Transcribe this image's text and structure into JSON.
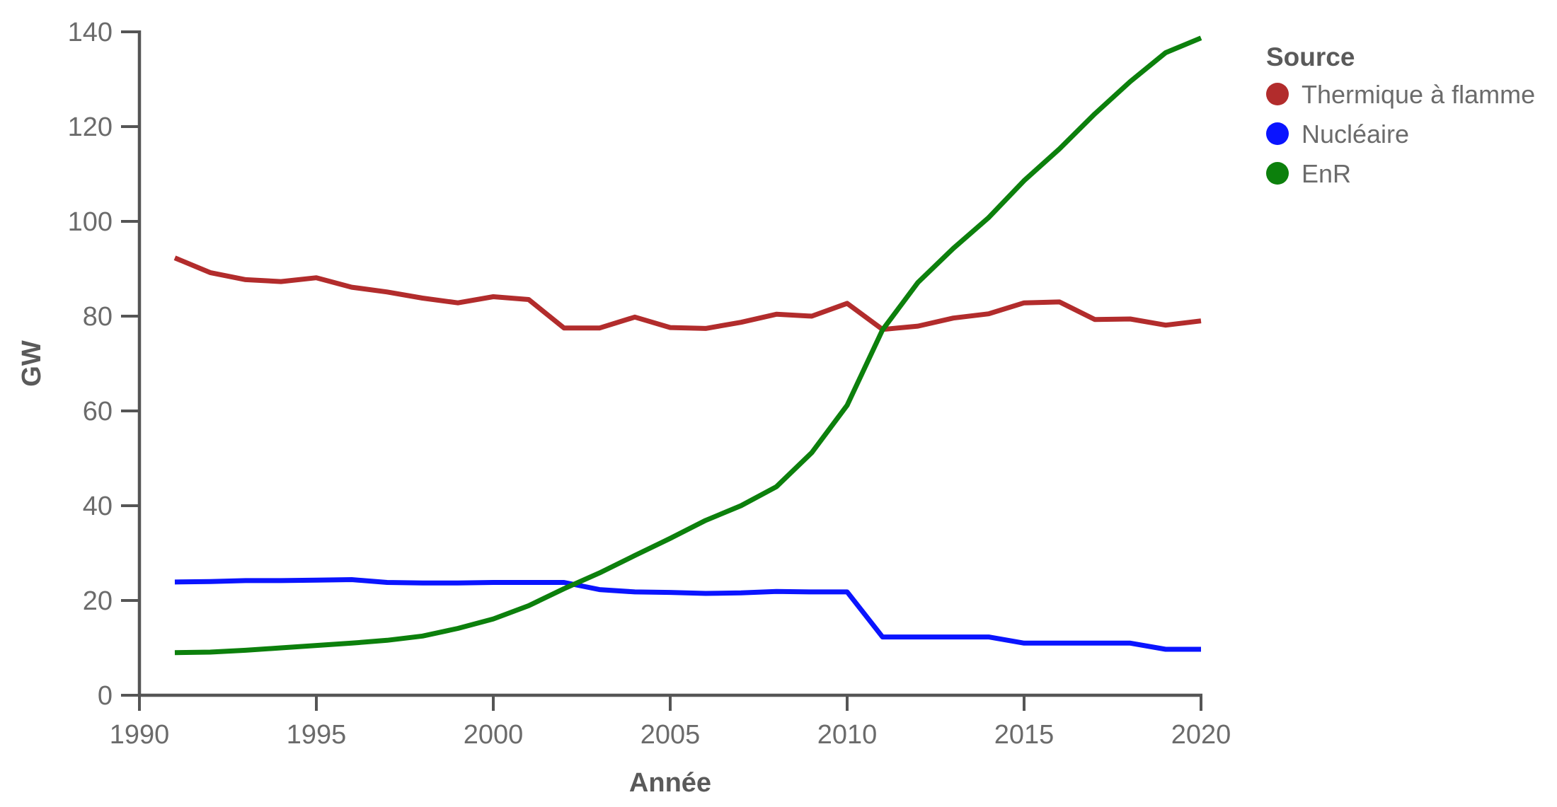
{
  "chart_data": {
    "type": "line",
    "xlabel": "Année",
    "ylabel": "GW",
    "xlim": [
      1990,
      2020
    ],
    "ylim": [
      0,
      140
    ],
    "xticks": [
      1990,
      1995,
      2000,
      2005,
      2010,
      2015,
      2020
    ],
    "yticks": [
      0,
      20,
      40,
      60,
      80,
      100,
      120,
      140
    ],
    "grid": false,
    "legend": {
      "title": "Source",
      "placement": "top-right"
    },
    "x": [
      1991,
      1992,
      1993,
      1994,
      1995,
      1996,
      1997,
      1998,
      1999,
      2000,
      2001,
      2002,
      2003,
      2004,
      2005,
      2006,
      2007,
      2008,
      2009,
      2010,
      2011,
      2012,
      2013,
      2014,
      2015,
      2016,
      2017,
      2018,
      2019,
      2020
    ],
    "series": [
      {
        "name": "Thermique à flamme",
        "color": "#b22c2c",
        "values": [
          92.3,
          89.2,
          87.7,
          87.3,
          88.1,
          86.1,
          85.1,
          83.8,
          82.8,
          84.1,
          83.5,
          77.5,
          77.5,
          79.8,
          77.6,
          77.4,
          78.7,
          80.4,
          80.0,
          82.7,
          77.2,
          77.9,
          79.6,
          80.5,
          82.8,
          83.0,
          79.3,
          79.4,
          78.1,
          79.0
        ]
      },
      {
        "name": "Nucléaire",
        "color": "#0a14ff",
        "values": [
          23.9,
          24.0,
          24.2,
          24.2,
          24.3,
          24.4,
          23.8,
          23.7,
          23.7,
          23.8,
          23.8,
          23.8,
          22.3,
          21.8,
          21.7,
          21.5,
          21.6,
          21.9,
          21.8,
          21.8,
          12.3,
          12.3,
          12.3,
          12.3,
          11.0,
          11.0,
          11.0,
          11.0,
          9.7,
          9.7
        ]
      },
      {
        "name": "EnR",
        "color": "#0c800c",
        "values": [
          9.0,
          9.1,
          9.5,
          10.0,
          10.5,
          11.0,
          11.6,
          12.5,
          14.1,
          16.1,
          18.9,
          22.5,
          25.8,
          29.5,
          33.1,
          36.9,
          40.0,
          44.0,
          51.2,
          61.2,
          77.1,
          87.1,
          94.3,
          100.8,
          108.6,
          115.3,
          122.7,
          129.5,
          135.6,
          138.7
        ]
      }
    ]
  }
}
